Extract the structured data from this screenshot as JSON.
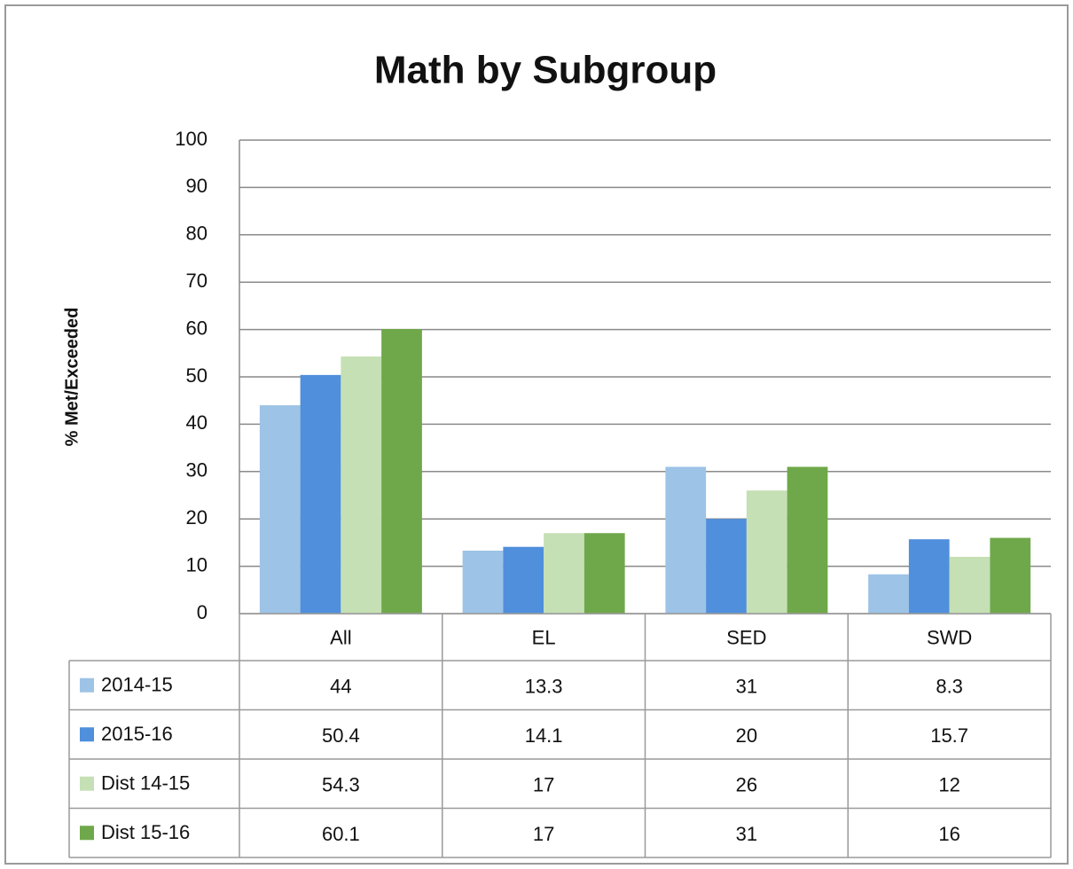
{
  "chart_data": {
    "type": "bar",
    "title": "Math by Subgroup",
    "y_label": "% Met/Exceeded",
    "categories": [
      "All",
      "EL",
      "SED",
      "SWD"
    ],
    "series": [
      {
        "name": "2014-15",
        "color": "#9dc3e6",
        "values": [
          44,
          13.3,
          31,
          8.3
        ]
      },
      {
        "name": "2015-16",
        "color": "#4f8fdc",
        "values": [
          50.4,
          14.1,
          20,
          15.7
        ]
      },
      {
        "name": "Dist 14-15",
        "color": "#c5e0b4",
        "values": [
          54.3,
          17,
          26,
          12
        ]
      },
      {
        "name": "Dist 15-16",
        "color": "#6fa84a",
        "values": [
          60.1,
          17,
          31,
          16
        ]
      }
    ],
    "ylim": [
      0,
      100
    ],
    "yticks": [
      0,
      10,
      20,
      30,
      40,
      50,
      60,
      70,
      80,
      90,
      100
    ],
    "grid": true,
    "data_table": true
  }
}
